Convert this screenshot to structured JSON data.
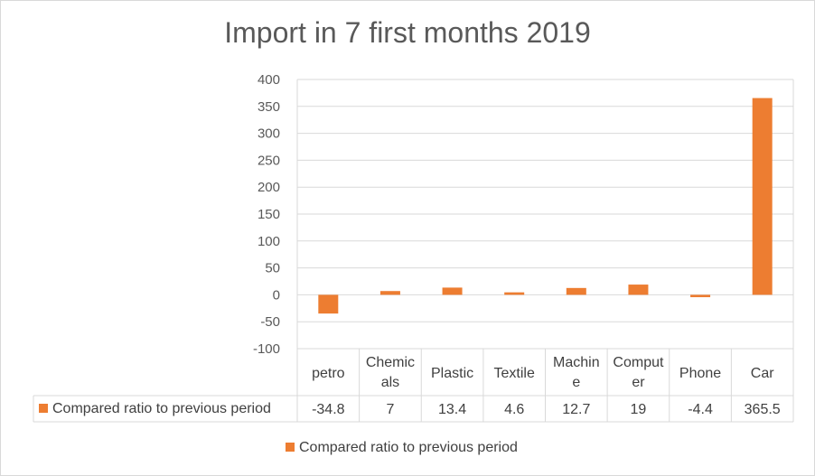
{
  "chart_data": {
    "type": "bar",
    "title": "Import in 7 first months 2019",
    "categories": [
      "petro",
      "Chemicals",
      "Plastic",
      "Textile",
      "Machine",
      "Computer",
      "Phone",
      "Car"
    ],
    "category_lines": [
      [
        "petro"
      ],
      [
        "Chemic",
        "als"
      ],
      [
        "Plastic"
      ],
      [
        "Textile"
      ],
      [
        "Machin",
        "e"
      ],
      [
        "Comput",
        "er"
      ],
      [
        "Phone"
      ],
      [
        "Car"
      ]
    ],
    "series": [
      {
        "name": "Compared ratio to previous period",
        "values": [
          -34.8,
          7,
          13.4,
          4.6,
          12.7,
          19,
          -4.4,
          365.5
        ],
        "labels": [
          "-34.8",
          "7",
          "13.4",
          "4.6",
          "12.7",
          "19",
          "-4.4",
          "365.5"
        ],
        "color": "#ed7d31"
      }
    ],
    "ylim": [
      -100,
      400
    ],
    "yticks": [
      400,
      350,
      300,
      250,
      200,
      150,
      100,
      50,
      0,
      -50,
      -100
    ],
    "grid": true,
    "data_table": true,
    "legend_position": "bottom"
  },
  "colors": {
    "bar": "#ed7d31",
    "grid": "#d9d9d9",
    "text": "#595959"
  }
}
